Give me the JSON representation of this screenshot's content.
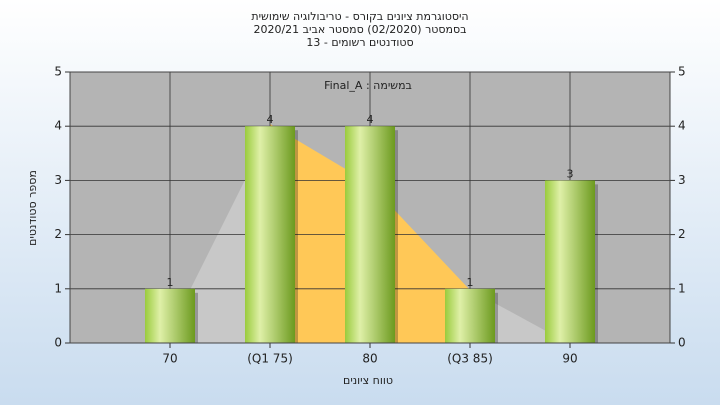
{
  "chart_data": {
    "type": "bar",
    "title": "היסטוגרמת ציונים בקורס - טריבולוגיה שימושית",
    "subtitle": "בסמסטר  (02/2020)  סמסטר אביב 2020/21",
    "subtitle2": "סטודנטים רשומים - 13",
    "annotation": "Final_A : במשימה",
    "x_label": "טווח ציונים",
    "y_label": "מספר סטודנטים",
    "categories": [
      "70",
      "(Q1 75)",
      "80",
      "(Q3 85)",
      "90"
    ],
    "values": [
      1,
      4,
      4,
      1,
      3
    ],
    "ylim": [
      0,
      5
    ],
    "yticks": [
      0,
      1,
      2,
      3,
      4,
      5
    ],
    "y2lim": [
      0,
      5
    ],
    "y2ticks": [
      0,
      1,
      2,
      3,
      4,
      5
    ],
    "grid": true
  }
}
